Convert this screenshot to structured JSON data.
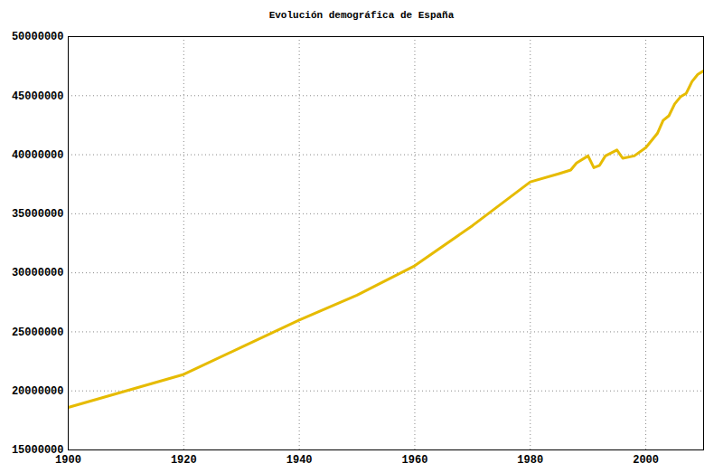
{
  "chart_data": {
    "type": "line",
    "title": "Evolución demográfica de España",
    "x": [
      1900,
      1910,
      1920,
      1930,
      1940,
      1950,
      1960,
      1970,
      1980,
      1985,
      1987,
      1988,
      1990,
      1991,
      1992,
      1993,
      1995,
      1996,
      1998,
      2000,
      2002,
      2003,
      2004,
      2005,
      2006,
      2007,
      2008,
      2009,
      2010
    ],
    "values": [
      18600000,
      20000000,
      21400000,
      23700000,
      26000000,
      28100000,
      30600000,
      34000000,
      37700000,
      38400000,
      38700000,
      39300000,
      39900000,
      38900000,
      39100000,
      39900000,
      40400000,
      39700000,
      39900000,
      40600000,
      41800000,
      42900000,
      43300000,
      44300000,
      44900000,
      45200000,
      46200000,
      46800000,
      47100000
    ],
    "color": "#e6bb00",
    "xlim": [
      1900,
      2010
    ],
    "xticks": [
      1900,
      1920,
      1940,
      1960,
      1980,
      2000
    ],
    "ylim": [
      15000000,
      50000000
    ],
    "yticks": [
      15000000,
      20000000,
      25000000,
      30000000,
      35000000,
      40000000,
      45000000,
      50000000
    ],
    "grid": true
  }
}
